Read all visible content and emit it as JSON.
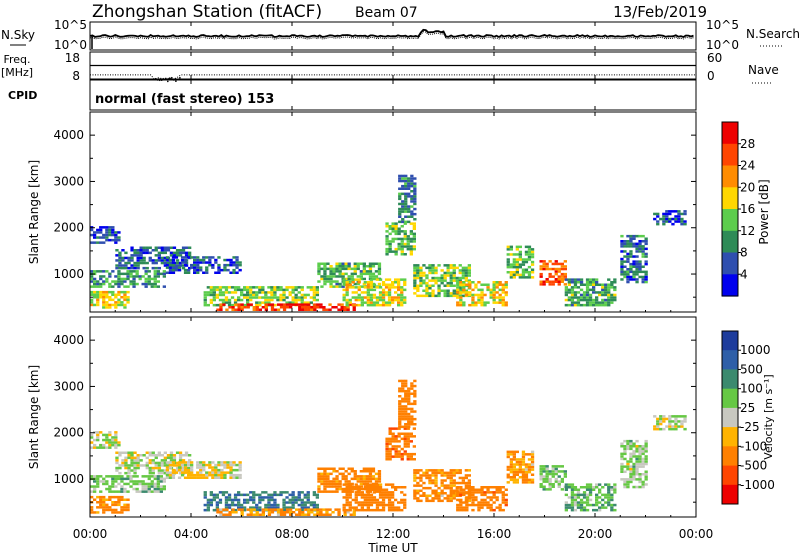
{
  "header": {
    "title": "Zhongshan Station (fitACF)",
    "beam": "Beam 07",
    "date": "13/Feb/2019"
  },
  "noise_panel": {
    "left_label": "N.Sky",
    "right_label": "N.Search",
    "left_ticks": [
      "10^5",
      "10^0"
    ],
    "right_ticks": [
      "10^5",
      "10^0"
    ]
  },
  "freq_panel": {
    "left_label_1": "Freq.",
    "left_label_2": "[MHz]",
    "right_label": "Nave",
    "left_ticks": [
      "18",
      "8"
    ],
    "right_ticks": [
      "60",
      "0"
    ]
  },
  "cpid": {
    "label": "CPID",
    "text": "normal (fast stereo) 153"
  },
  "power_panel": {
    "ylabel": "Slant Range [km]",
    "colorbar_label": "Power [dB]",
    "colorbar_ticks": [
      "28",
      "24",
      "20",
      "16",
      "12",
      "8",
      "4"
    ],
    "colors": [
      "#0000ee",
      "#2f4faf",
      "#2e8b57",
      "#5ccd4c",
      "#ffd700",
      "#ff8c00",
      "#ff4500",
      "#ee0000"
    ]
  },
  "velocity_panel": {
    "ylabel": "Slant Range [km]",
    "colorbar_label": "Velocity [m s⁻¹]",
    "colorbar_ticks": [
      "1000",
      "500",
      "100",
      "25",
      "-25",
      "-100",
      "-500",
      "-1000"
    ],
    "colors": [
      "#1e3c9c",
      "#2e5fa8",
      "#3b8a6e",
      "#66c844",
      "#c8c8c0",
      "#ffb300",
      "#ff8000",
      "#ff4500",
      "#ee0000"
    ]
  },
  "xaxis": {
    "label": "Time UT",
    "ticks": [
      "00:00",
      "04:00",
      "08:00",
      "12:00",
      "16:00",
      "20:00",
      "00:00"
    ]
  },
  "chart_data": {
    "type": "heatmap",
    "title": "Zhongshan Station (fitACF)",
    "subtitle": "Beam 07",
    "date": "13/Feb/2019",
    "x_axis": {
      "label": "Time UT",
      "range_hours": [
        0,
        24
      ],
      "ticks": [
        "00:00",
        "04:00",
        "08:00",
        "12:00",
        "16:00",
        "20:00",
        "00:00"
      ]
    },
    "y_axis": {
      "label": "Slant Range [km]",
      "range_km": [
        180,
        4500
      ],
      "ticks": [
        1000,
        2000,
        3000,
        4000
      ]
    },
    "grid": false,
    "legend": "colorbars at right",
    "panels": [
      {
        "name": "Power [dB]",
        "colorbar": [
          4,
          8,
          12,
          16,
          20,
          24,
          28
        ]
      },
      {
        "name": "Velocity [m s⁻¹]",
        "colorbar": [
          1000,
          500,
          100,
          25,
          -25,
          -100,
          -500,
          -1000
        ]
      }
    ],
    "echo_regions": [
      {
        "t": [
          0.0,
          1.1
        ],
        "r": [
          1650,
          2000
        ],
        "power": 6,
        "velocity": 10
      },
      {
        "t": [
          0.0,
          1.5
        ],
        "r": [
          250,
          600
        ],
        "power": 18,
        "velocity": -150
      },
      {
        "t": [
          0.0,
          3.0
        ],
        "r": [
          700,
          1050
        ],
        "power": 11,
        "velocity": 60
      },
      {
        "t": [
          1.0,
          4.0
        ],
        "r": [
          1100,
          1550
        ],
        "power": 7,
        "velocity": 15
      },
      {
        "t": [
          3.0,
          6.0
        ],
        "r": [
          1000,
          1350
        ],
        "power": 6,
        "velocity": -20
      },
      {
        "t": [
          4.5,
          9.0
        ],
        "r": [
          300,
          700
        ],
        "power": 15,
        "velocity": 450
      },
      {
        "t": [
          5.0,
          10.5
        ],
        "r": [
          200,
          320
        ],
        "power": 28,
        "velocity": -120
      },
      {
        "t": [
          9.0,
          11.5
        ],
        "r": [
          700,
          1200
        ],
        "power": 12,
        "velocity": -200
      },
      {
        "t": [
          10.0,
          12.5
        ],
        "r": [
          300,
          900
        ],
        "power": 17,
        "velocity": -300
      },
      {
        "t": [
          11.7,
          12.8
        ],
        "r": [
          1400,
          2100
        ],
        "power": 13,
        "velocity": -400
      },
      {
        "t": [
          12.2,
          12.8
        ],
        "r": [
          2100,
          3100
        ],
        "power": 9,
        "velocity": -250
      },
      {
        "t": [
          12.8,
          15.0
        ],
        "r": [
          500,
          1200
        ],
        "power": 14,
        "velocity": -150
      },
      {
        "t": [
          14.5,
          16.5
        ],
        "r": [
          300,
          800
        ],
        "power": 18,
        "velocity": -350
      },
      {
        "t": [
          16.5,
          17.5
        ],
        "r": [
          900,
          1600
        ],
        "power": 13,
        "velocity": -100
      },
      {
        "t": [
          17.8,
          18.8
        ],
        "r": [
          750,
          1300
        ],
        "power": 25,
        "velocity": 60
      },
      {
        "t": [
          18.8,
          20.8
        ],
        "r": [
          300,
          900
        ],
        "power": 12,
        "velocity": 80
      },
      {
        "t": [
          21.0,
          22.0
        ],
        "r": [
          800,
          1800
        ],
        "power": 8,
        "velocity": 40
      },
      {
        "t": [
          22.3,
          23.6
        ],
        "r": [
          2050,
          2350
        ],
        "power": 5,
        "velocity": 20
      }
    ],
    "frequency_mhz": {
      "typical": 11,
      "dip": {
        "t": [
          2.5,
          3.5
        ],
        "value": 9.3
      }
    },
    "nave": {
      "typical": 30
    },
    "noise_sky": {
      "typical": "10^1.5",
      "peak": {
        "t": [
          13.0,
          14.0
        ]
      }
    }
  }
}
